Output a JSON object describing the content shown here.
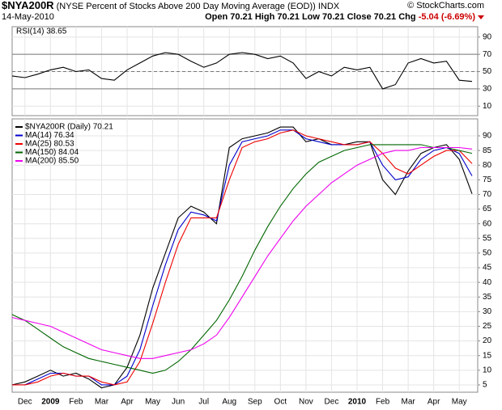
{
  "header": {
    "symbol": "$NYA200R",
    "description": "(NYSE Percent of Stocks Above 200 Day Moving Average (EOD))",
    "exchange": "INDX",
    "copyright": "© StockCharts.com",
    "date": "14-May-2010",
    "quote": [
      {
        "label": "Open",
        "value": 70.21
      },
      {
        "label": "High",
        "value": 70.21
      },
      {
        "label": "Low",
        "value": 70.21
      },
      {
        "label": "Close",
        "value": 70.21
      }
    ],
    "change_label": "Chg",
    "change": "-5.04 (-6.69%)"
  },
  "chart_data": [
    {
      "type": "line",
      "title": "RSI(14) 38.65",
      "categories": [
        null,
        "Dec",
        null,
        "2009",
        null,
        "Feb",
        null,
        "Mar",
        null,
        "Apr",
        null,
        "May",
        null,
        "Jun",
        null,
        "Jul",
        null,
        "Aug",
        null,
        "Sep",
        null,
        "Oct",
        null,
        "Nov",
        null,
        "Dec",
        null,
        "2010",
        null,
        "Feb",
        null,
        "Mar",
        null,
        "Apr",
        null,
        "May",
        null
      ],
      "series": [
        {
          "name": "RSI(14)",
          "color": "#000000",
          "values": [
            45,
            43,
            47,
            52,
            55,
            50,
            52,
            42,
            40,
            52,
            60,
            68,
            72,
            70,
            62,
            55,
            60,
            70,
            72,
            70,
            65,
            68,
            60,
            42,
            50,
            45,
            55,
            52,
            55,
            30,
            35,
            60,
            65,
            60,
            62,
            40,
            38.65
          ]
        }
      ],
      "ylim": [
        -1,
        102
      ],
      "yticks": [
        10,
        30,
        50,
        70,
        90
      ],
      "hlines": [
        30,
        50,
        70
      ],
      "hline_styles": [
        "solid",
        "dashed",
        "solid"
      ],
      "grid": true
    },
    {
      "type": "line",
      "categories": [
        null,
        "Dec",
        null,
        "2009",
        null,
        "Feb",
        null,
        "Mar",
        null,
        "Apr",
        null,
        "May",
        null,
        "Jun",
        null,
        "Jul",
        null,
        "Aug",
        null,
        "Sep",
        null,
        "Oct",
        null,
        "Nov",
        null,
        "Dec",
        null,
        "2010",
        null,
        "Feb",
        null,
        "Mar",
        null,
        "Apr",
        null,
        "May",
        null
      ],
      "series": [
        {
          "name": "$NYA200R (Daily) 70.21",
          "color": "#000000",
          "values": [
            5,
            6,
            8,
            10,
            8,
            9,
            7,
            4,
            5,
            11,
            22,
            38,
            50,
            62,
            66,
            64,
            60,
            86,
            89,
            90,
            91,
            93,
            93,
            88,
            89,
            87,
            87,
            88,
            88,
            75,
            70,
            78,
            84,
            86,
            87,
            82,
            70.21
          ]
        },
        {
          "name": "MA(14) 76.34",
          "color": "#0000cc",
          "values": [
            5,
            5,
            7,
            9,
            9,
            8,
            8,
            5,
            5,
            8,
            17,
            32,
            46,
            58,
            64,
            63,
            61,
            80,
            88,
            89,
            90,
            92,
            92,
            89,
            88,
            87,
            87,
            87,
            88,
            80,
            75,
            76,
            82,
            85,
            86,
            84,
            76.34
          ]
        },
        {
          "name": "MA(25) 80.53",
          "color": "#ee0000",
          "values": [
            5,
            5,
            6,
            8,
            9,
            8,
            8,
            6,
            5,
            6,
            13,
            26,
            40,
            53,
            62,
            62,
            62,
            75,
            86,
            88,
            89,
            91,
            92,
            90,
            89,
            88,
            87,
            87,
            88,
            84,
            79,
            77,
            80,
            83,
            85,
            85,
            80.53
          ]
        },
        {
          "name": "MA(150) 84.04",
          "color": "#006600",
          "values": [
            29,
            27,
            24,
            21,
            18,
            16,
            14,
            13,
            12,
            11,
            10,
            9,
            10,
            13,
            17,
            22,
            27,
            34,
            42,
            51,
            59,
            66,
            72,
            77,
            81,
            83,
            85,
            86,
            87,
            87,
            87,
            87,
            87,
            86,
            86,
            85,
            84.04
          ]
        },
        {
          "name": "MA(200) 85.50",
          "color": "#ee00ee",
          "values": [
            28,
            27,
            26,
            25,
            23,
            21,
            19,
            17,
            16,
            15,
            14,
            14,
            15,
            16,
            17,
            19,
            22,
            28,
            35,
            42,
            49,
            55,
            61,
            66,
            70,
            74,
            77,
            80,
            82,
            84,
            85,
            85,
            86,
            86,
            86,
            86,
            85.5
          ]
        }
      ],
      "ylim": [
        2.5,
        95.8
      ],
      "yticks": [
        5,
        10,
        15,
        20,
        25,
        30,
        35,
        40,
        45,
        50,
        55,
        60,
        65,
        70,
        75,
        80,
        85,
        90
      ],
      "grid": true,
      "legend": "top-left"
    }
  ]
}
